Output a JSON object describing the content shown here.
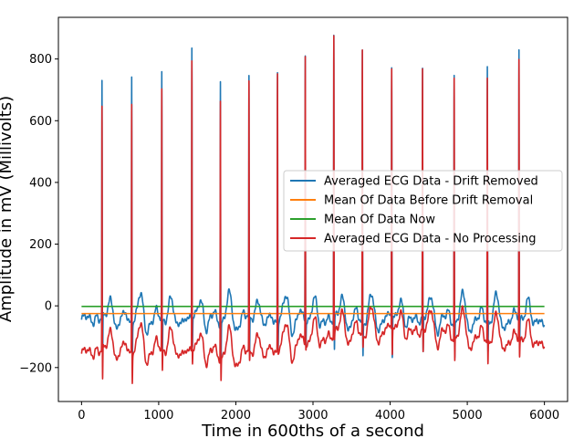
{
  "chart_data": {
    "type": "line",
    "title": "",
    "xlabel": "Time in 600ths of a second",
    "ylabel": "Amplitude in mV (Millivolts)",
    "xlim": [
      -300,
      6300
    ],
    "ylim": [
      -310,
      935
    ],
    "xticks": [
      0,
      1000,
      2000,
      3000,
      4000,
      5000,
      6000
    ],
    "yticks": [
      -200,
      0,
      200,
      400,
      600,
      800
    ],
    "grid": false,
    "legend_position": "center-right",
    "beats": [
      {
        "x": 265,
        "peak_drift": 735,
        "peak_raw": 650,
        "trough_drift": -210,
        "trough_raw": -262
      },
      {
        "x": 650,
        "peak_drift": 745,
        "peak_raw": 655,
        "trough_drift": -200,
        "trough_raw": -255
      },
      {
        "x": 1040,
        "peak_drift": 762,
        "peak_raw": 705,
        "trough_drift": -160,
        "trough_raw": -215
      },
      {
        "x": 1430,
        "peak_drift": 838,
        "peak_raw": 795,
        "trough_drift": -150,
        "trough_raw": -200
      },
      {
        "x": 1800,
        "peak_drift": 730,
        "peak_raw": 665,
        "trough_drift": -210,
        "trough_raw": -260
      },
      {
        "x": 2170,
        "peak_drift": 750,
        "peak_raw": 730,
        "trough_drift": -165,
        "trough_raw": -180
      },
      {
        "x": 2540,
        "peak_drift": 758,
        "peak_raw": 752,
        "trough_drift": -145,
        "trough_raw": -150
      },
      {
        "x": 2900,
        "peak_drift": 812,
        "peak_raw": 808,
        "trough_drift": -140,
        "trough_raw": -145
      },
      {
        "x": 3270,
        "peak_drift": 880,
        "peak_raw": 876,
        "trough_drift": -160,
        "trough_raw": -120
      },
      {
        "x": 3640,
        "peak_drift": 832,
        "peak_raw": 830,
        "trough_drift": -165,
        "trough_raw": -130
      },
      {
        "x": 4020,
        "peak_drift": 775,
        "peak_raw": 770,
        "trough_drift": -185,
        "trough_raw": -170
      },
      {
        "x": 4420,
        "peak_drift": 773,
        "peak_raw": 770,
        "trough_drift": -165,
        "trough_raw": -160
      },
      {
        "x": 4830,
        "peak_drift": 750,
        "peak_raw": 740,
        "trough_drift": -190,
        "trough_raw": -195
      },
      {
        "x": 5260,
        "peak_drift": 778,
        "peak_raw": 740,
        "trough_drift": -170,
        "trough_raw": -205
      },
      {
        "x": 5670,
        "peak_drift": 832,
        "peak_raw": 800,
        "trough_drift": -145,
        "trough_raw": -170
      }
    ],
    "series": [
      {
        "name": "Averaged ECG Data - Drift Removed",
        "color": "#1f77b4",
        "signal": "drift_removed"
      },
      {
        "name": "Mean Of Data Before Drift Removal",
        "color": "#ff7f0e",
        "constant": -25
      },
      {
        "name": "Mean Of Data Now",
        "color": "#2ca02c",
        "constant": -2
      },
      {
        "name": "Averaged ECG Data - No Processing",
        "color": "#d62728",
        "signal": "raw"
      }
    ]
  }
}
